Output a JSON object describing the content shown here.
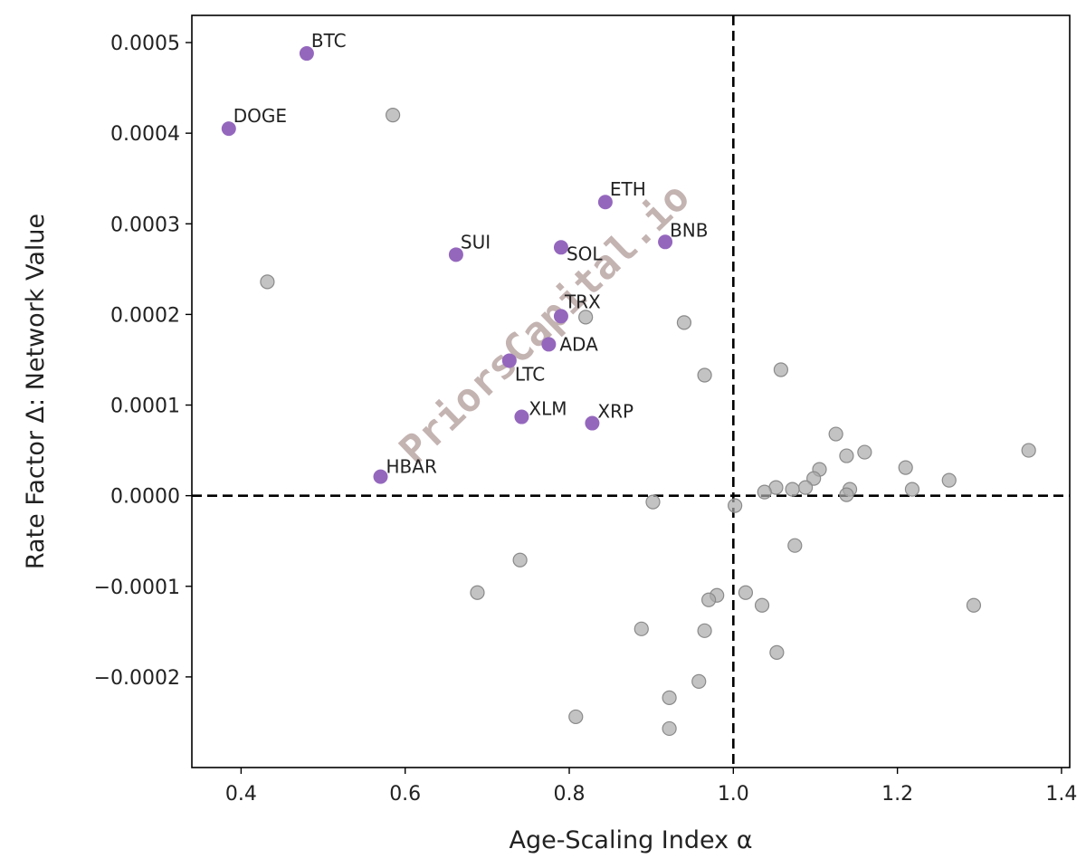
{
  "colors": {
    "highlight": "#9467bd",
    "other": "#a9a9a9",
    "axis": "#000000"
  },
  "watermark": "PriorsCapital.io",
  "chart_data": {
    "type": "scatter",
    "title": "",
    "xlabel": "Age-Scaling Index α",
    "ylabel": "Rate Factor Δ: Network Value",
    "xlim": [
      0.34,
      1.41
    ],
    "ylim": [
      -0.0003,
      0.00053
    ],
    "xticks": [
      {
        "v": 0.4,
        "label": "0.4"
      },
      {
        "v": 0.6,
        "label": "0.6"
      },
      {
        "v": 0.8,
        "label": "0.8"
      },
      {
        "v": 1.0,
        "label": "1.0"
      },
      {
        "v": 1.2,
        "label": "1.2"
      },
      {
        "v": 1.4,
        "label": "1.4"
      }
    ],
    "yticks": [
      {
        "v": -0.0002,
        "label": "−0.0002"
      },
      {
        "v": -0.0001,
        "label": "−0.0001"
      },
      {
        "v": 0.0,
        "label": "0.0000"
      },
      {
        "v": 0.0001,
        "label": "0.0001"
      },
      {
        "v": 0.0002,
        "label": "0.0002"
      },
      {
        "v": 0.0003,
        "label": "0.0003"
      },
      {
        "v": 0.0004,
        "label": "0.0004"
      },
      {
        "v": 0.0005,
        "label": "0.0005"
      }
    ],
    "reference_lines": {
      "x": 1.0,
      "y": 0.0
    },
    "highlighted": [
      {
        "label": "BTC",
        "x": 0.48,
        "y": 0.000488
      },
      {
        "label": "DOGE",
        "x": 0.385,
        "y": 0.000405
      },
      {
        "label": "ETH",
        "x": 0.844,
        "y": 0.000324
      },
      {
        "label": "BNB",
        "x": 0.917,
        "y": 0.00028
      },
      {
        "label": "SOL",
        "x": 0.79,
        "y": 0.000274
      },
      {
        "label": "SUI",
        "x": 0.662,
        "y": 0.000266
      },
      {
        "label": "TRX",
        "x": 0.79,
        "y": 0.000198
      },
      {
        "label": "ADA",
        "x": 0.775,
        "y": 0.000167
      },
      {
        "label": "LTC",
        "x": 0.727,
        "y": 0.000149
      },
      {
        "label": "XLM",
        "x": 0.742,
        "y": 8.7e-05
      },
      {
        "label": "XRP",
        "x": 0.828,
        "y": 8e-05
      },
      {
        "label": "HBAR",
        "x": 0.57,
        "y": 2.1e-05
      }
    ],
    "others": [
      {
        "x": 0.585,
        "y": 0.00042
      },
      {
        "x": 0.432,
        "y": 0.000236
      },
      {
        "x": 0.82,
        "y": 0.000197
      },
      {
        "x": 0.94,
        "y": 0.000191
      },
      {
        "x": 0.965,
        "y": 0.000133
      },
      {
        "x": 1.058,
        "y": 0.000139
      },
      {
        "x": 1.125,
        "y": 6.8e-05
      },
      {
        "x": 1.138,
        "y": 4.4e-05
      },
      {
        "x": 1.16,
        "y": 4.8e-05
      },
      {
        "x": 1.21,
        "y": 3.1e-05
      },
      {
        "x": 1.263,
        "y": 1.7e-05
      },
      {
        "x": 1.36,
        "y": 5e-05
      },
      {
        "x": 1.105,
        "y": 2.9e-05
      },
      {
        "x": 1.098,
        "y": 1.9e-05
      },
      {
        "x": 1.088,
        "y": 9e-06
      },
      {
        "x": 1.072,
        "y": 7e-06
      },
      {
        "x": 1.052,
        "y": 9e-06
      },
      {
        "x": 1.038,
        "y": 4e-06
      },
      {
        "x": 1.142,
        "y": 7e-06
      },
      {
        "x": 1.138,
        "y": 1e-06
      },
      {
        "x": 1.218,
        "y": 7e-06
      },
      {
        "x": 0.902,
        "y": -7e-06
      },
      {
        "x": 1.002,
        "y": -1.1e-05
      },
      {
        "x": 1.075,
        "y": -5.5e-05
      },
      {
        "x": 0.74,
        "y": -7.1e-05
      },
      {
        "x": 0.688,
        "y": -0.000107
      },
      {
        "x": 0.98,
        "y": -0.00011
      },
      {
        "x": 0.97,
        "y": -0.000115
      },
      {
        "x": 1.015,
        "y": -0.000107
      },
      {
        "x": 1.035,
        "y": -0.000121
      },
      {
        "x": 1.293,
        "y": -0.000121
      },
      {
        "x": 0.888,
        "y": -0.000147
      },
      {
        "x": 0.965,
        "y": -0.000149
      },
      {
        "x": 1.053,
        "y": -0.000173
      },
      {
        "x": 0.958,
        "y": -0.000205
      },
      {
        "x": 0.922,
        "y": -0.000223
      },
      {
        "x": 0.808,
        "y": -0.000244
      },
      {
        "x": 0.922,
        "y": -0.000257
      }
    ]
  }
}
